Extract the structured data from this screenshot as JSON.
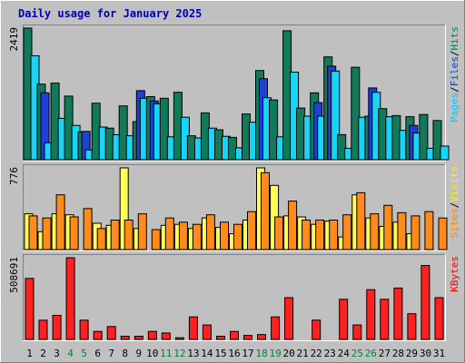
{
  "chart_data": {
    "type": "bar",
    "title": "Daily usage for January 2025",
    "x": [
      "1",
      "2",
      "3",
      "4",
      "5",
      "6",
      "7",
      "8",
      "9",
      "10",
      "11",
      "12",
      "13",
      "14",
      "15",
      "16",
      "17",
      "18",
      "19",
      "20",
      "21",
      "22",
      "23",
      "24",
      "25",
      "26",
      "27",
      "28",
      "29",
      "30",
      "31"
    ],
    "weekend_days": [
      "4",
      "5",
      "11",
      "12",
      "18",
      "19",
      "25",
      "26"
    ],
    "panels": [
      {
        "id": "hits-files-pages",
        "max_label": "2419",
        "legend": [
          {
            "label": "Pages",
            "color": "#00C8FF"
          },
          {
            "label": "Files",
            "color": "#0040E0"
          },
          {
            "label": "Hits",
            "color": "#008060"
          }
        ],
        "series": [
          {
            "name": "Hits",
            "color": "#107A5A",
            "values": [
              2419,
              1390,
              1410,
              1170,
              510,
              1040,
              580,
              990,
              700,
              1160,
              1130,
              1240,
              440,
              860,
              550,
              410,
              840,
              1640,
              1100,
              2370,
              950,
              1230,
              1890,
              460,
              1700,
              800,
              940,
              810,
              790,
              830,
              720
            ]
          },
          {
            "name": "Files",
            "color": "#1E3FD8",
            "values": [
              0,
              1230,
              0,
              0,
              520,
              0,
              0,
              0,
              1270,
              1080,
              0,
              0,
              0,
              0,
              0,
              0,
              0,
              1490,
              0,
              0,
              0,
              1050,
              1720,
              0,
              0,
              1320,
              0,
              0,
              630,
              0,
              0
            ]
          },
          {
            "name": "Pages",
            "color": "#17D4F8",
            "values": [
              1910,
              310,
              760,
              630,
              180,
              600,
              460,
              440,
              1130,
              1030,
              420,
              780,
              400,
              580,
              430,
              220,
              690,
              1140,
              420,
              1610,
              800,
              800,
              1630,
              210,
              780,
              1240,
              790,
              540,
              490,
              210,
              250
            ]
          }
        ]
      },
      {
        "id": "visits-sites",
        "max_label": "776",
        "legend": [
          {
            "label": "Sites",
            "color": "#FF8C00"
          },
          {
            "label": "Visits",
            "color": "#FFF000"
          }
        ],
        "series": [
          {
            "name": "Visits",
            "color": "#FFFF55",
            "values": [
              340,
              170,
              340,
              330,
              0,
              250,
              230,
              776,
              200,
              0,
              230,
              240,
              200,
              300,
              210,
              150,
              280,
              776,
              610,
              320,
              310,
              240,
              270,
              120,
              520,
              300,
              220,
              260,
              150,
              0,
              0
            ]
          },
          {
            "name": "Sites",
            "color": "#FF8C1A",
            "values": [
              320,
              300,
              520,
              310,
              390,
              200,
              280,
              280,
              340,
              190,
              300,
              260,
              240,
              330,
              260,
              240,
              360,
              730,
              310,
              460,
              280,
              280,
              280,
              330,
              540,
              340,
              420,
              350,
              320,
              360,
              300
            ]
          }
        ]
      },
      {
        "id": "kbytes",
        "max_label": "508691",
        "legend": [
          {
            "label": "KBytes",
            "color": "#FF0000"
          }
        ],
        "series": [
          {
            "name": "KBytes",
            "color": "#FF2020",
            "values": [
              380000,
              120000,
              150000,
              508691,
              120000,
              50000,
              80000,
              20000,
              20000,
              50000,
              40000,
              10000,
              140000,
              90000,
              20000,
              50000,
              25000,
              30000,
              140000,
              260000,
              0,
              120000,
              0,
              250000,
              90000,
              310000,
              250000,
              320000,
              160000,
              460000,
              260000
            ]
          }
        ]
      }
    ]
  }
}
